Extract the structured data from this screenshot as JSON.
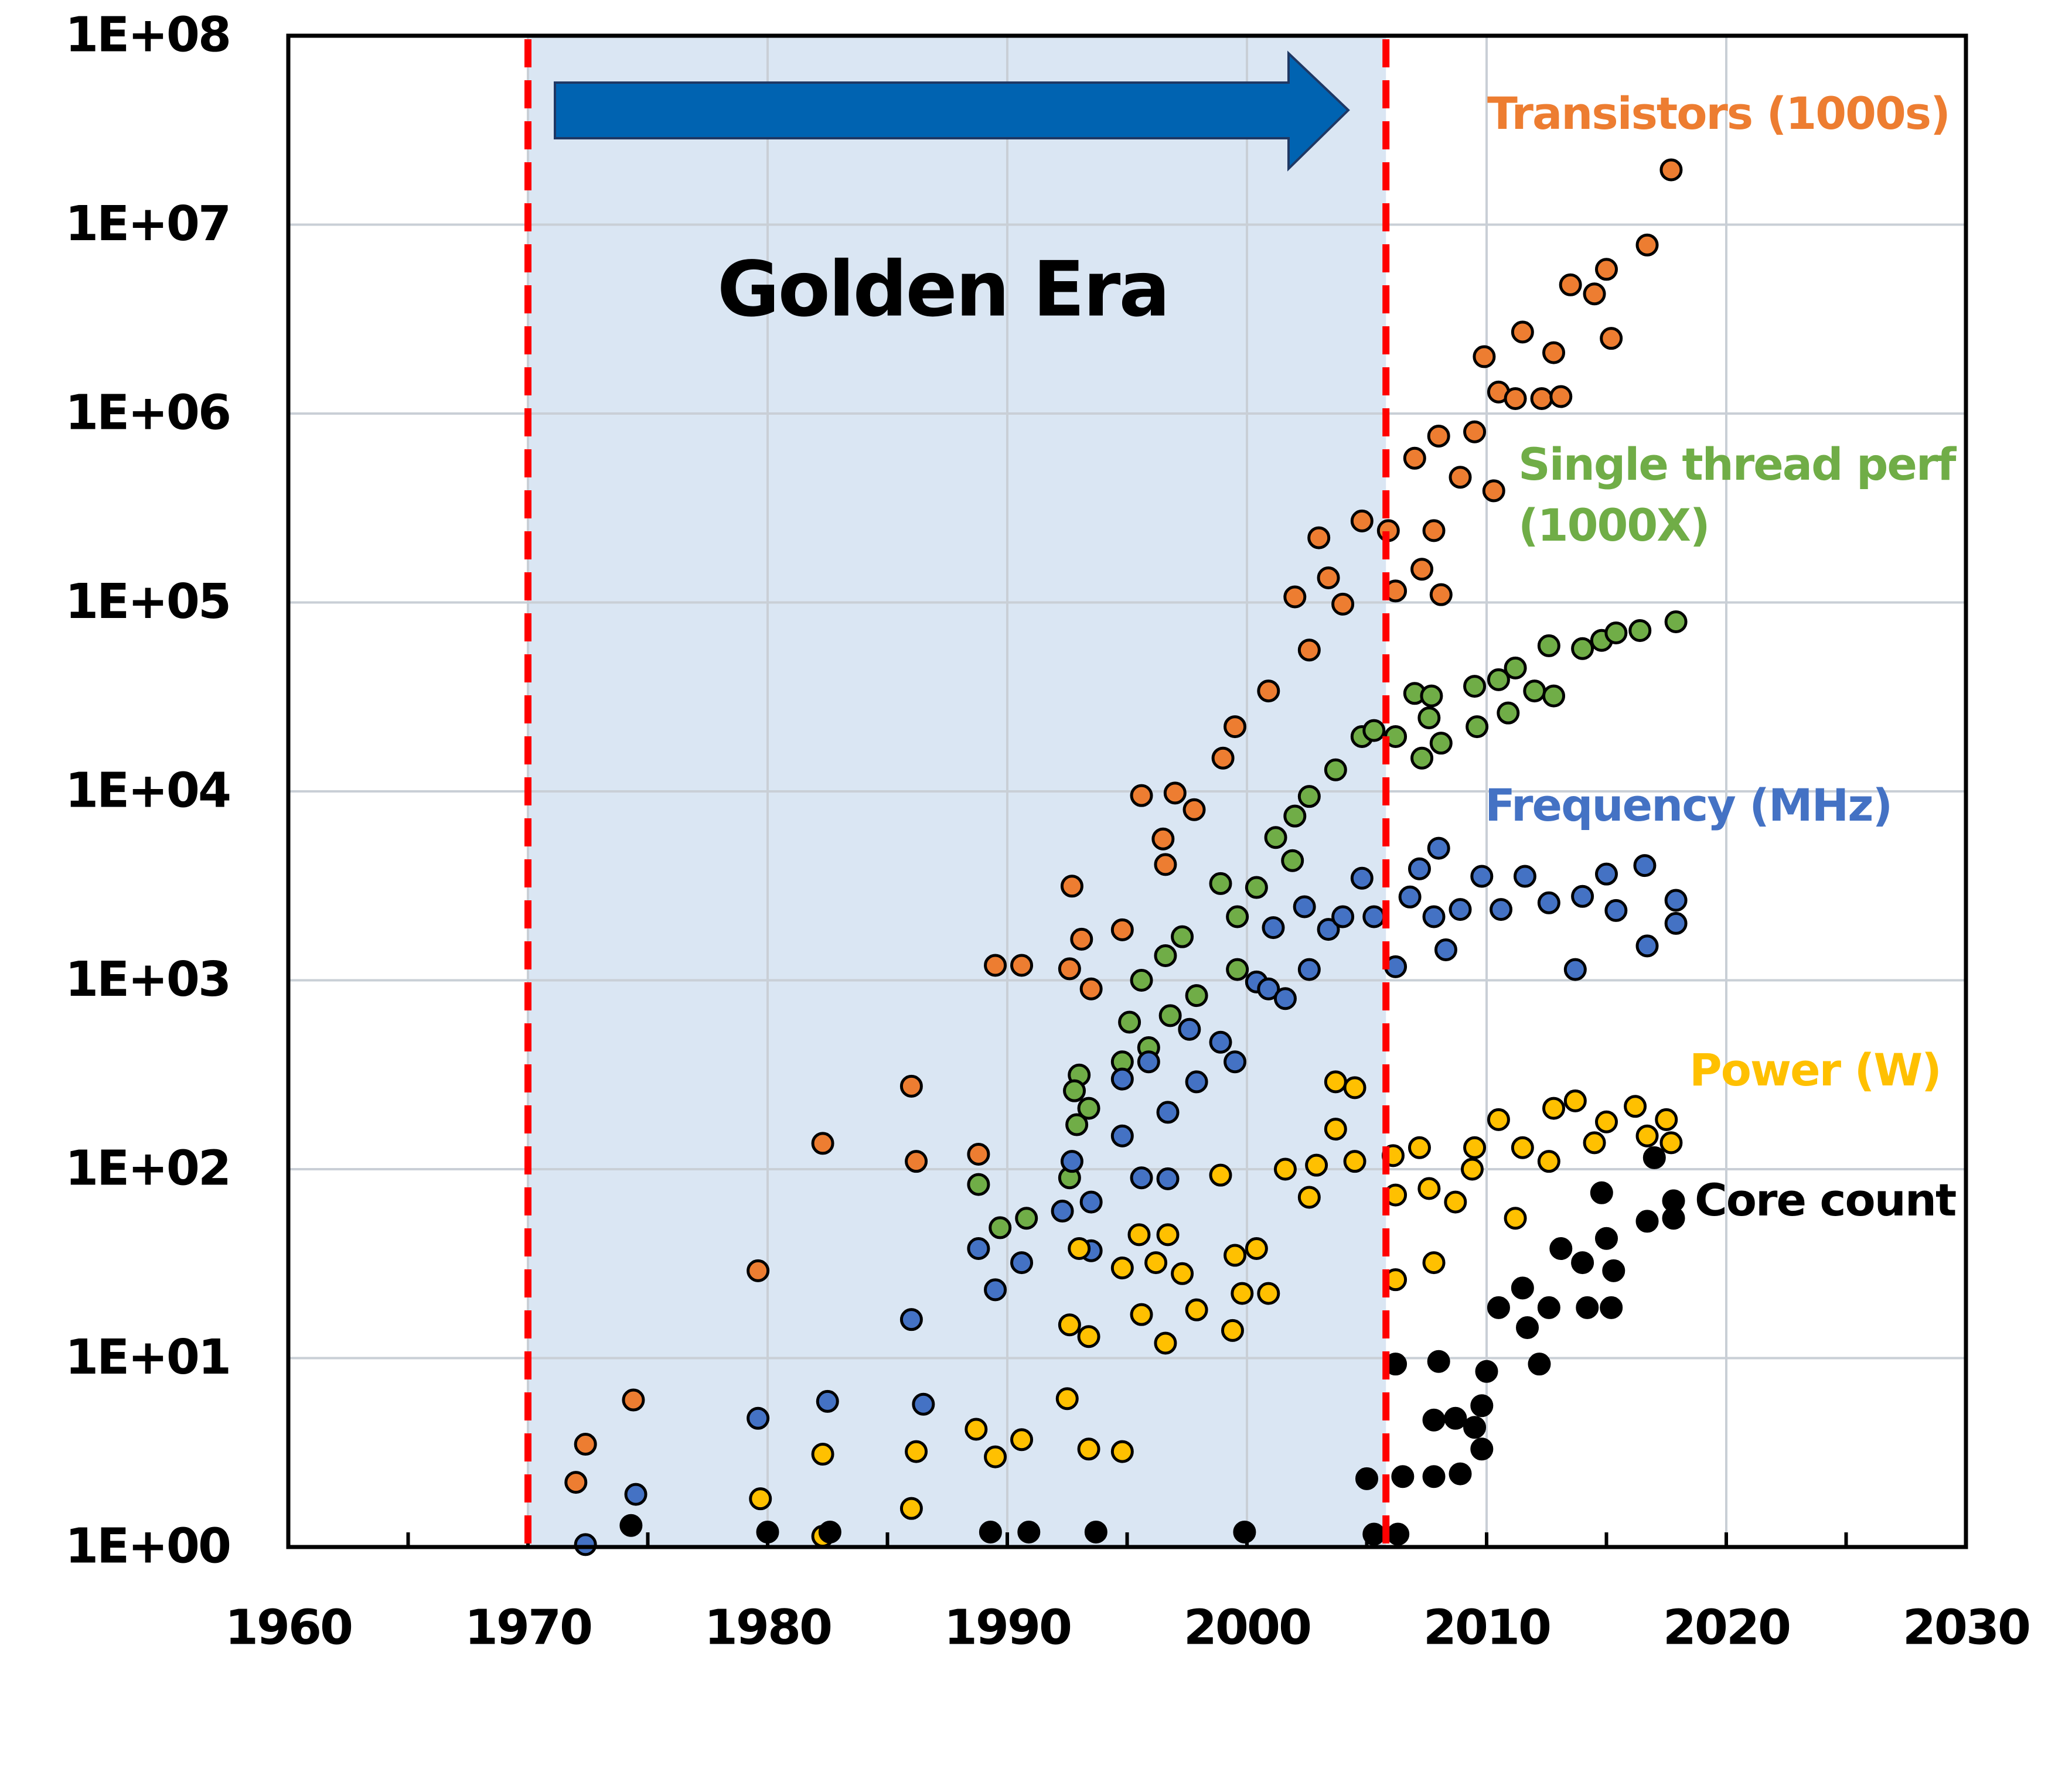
{
  "chart_data": {
    "type": "scatter",
    "annotation": "Golden Era",
    "highlight_xlim": [
      1970,
      2005.8
    ],
    "log_y": true,
    "grid": true,
    "xlim": [
      1960,
      2030
    ],
    "xticks": [
      1960,
      1970,
      1980,
      1990,
      2000,
      2010,
      2020,
      2030
    ],
    "xminorticks": [
      1965,
      1975,
      1985,
      1995,
      2005,
      2015,
      2025
    ],
    "ylim": [
      1,
      100000000
    ],
    "yticks": [
      {
        "value": 1,
        "label": "1E+00"
      },
      {
        "value": 10,
        "label": "1E+01"
      },
      {
        "value": 100,
        "label": "1E+02"
      },
      {
        "value": 1000,
        "label": "1E+03"
      },
      {
        "value": 10000,
        "label": "1E+04"
      },
      {
        "value": 100000,
        "label": "1E+05"
      },
      {
        "value": 1000000,
        "label": "1E+06"
      },
      {
        "value": 10000000,
        "label": "1E+07"
      },
      {
        "value": 100000000,
        "label": "1E+08"
      }
    ],
    "series": [
      {
        "name": "Transistors (1000s)",
        "color": "#ED7D31",
        "x": [
          1972,
          1972.4,
          1974.4,
          1979.6,
          1982.3,
          1986,
          1986.2,
          1988.8,
          1989.5,
          1990.6,
          1992.6,
          1993.1,
          1993.5,
          1992.7,
          1994.8,
          1995.6,
          1997,
          1997.8,
          1996.6,
          1996.5,
          1999,
          1999.5,
          2000.9,
          2002,
          2003,
          2003.4,
          2002.6,
          2004,
          2004.8,
          2005.9,
          2006.2,
          2007,
          2008,
          2007.3,
          2008.1,
          2007.8,
          2009.5,
          2008.9,
          2010.3,
          2009.9,
          2010.5,
          2011.2,
          2012.3,
          2013.1,
          2011.5,
          2012.8,
          2013.5,
          2014.5,
          2015,
          2015.2,
          2016.7,
          2017.7
        ],
        "values": [
          2.2,
          3.5,
          6,
          29,
          137,
          275,
          110,
          120,
          1200,
          1200,
          1150,
          1650,
          900,
          3150,
          1850,
          9500,
          9800,
          8000,
          4100,
          5600,
          15000,
          22000,
          34000,
          107000,
          220000,
          135000,
          56000,
          98000,
          270000,
          240000,
          115000,
          580000,
          760000,
          150000,
          110000,
          240000,
          800000,
          460000,
          390000,
          2000000,
          1300000,
          1200000,
          1200000,
          1230000,
          2700000,
          2100000,
          4800000,
          4300000,
          5800000,
          2500000,
          7800000,
          19500000
        ]
      },
      {
        "name": "Single thread perf (1000X)",
        "color": "#70AD47",
        "x": [
          1988.8,
          1989.7,
          1990.8,
          1993,
          1992.8,
          1993.4,
          1992.9,
          1992.6,
          1994.8,
          1995.1,
          1995.9,
          1995.6,
          1996.6,
          1997.3,
          1997.9,
          1996.8,
          1998.9,
          1999.6,
          2000.4,
          1999.6,
          2001.2,
          2002,
          2002.6,
          2001.9,
          2003.7,
          2004.8,
          2005.3,
          2006.2,
          2007,
          2007.6,
          2007.3,
          2008.1,
          2007.7,
          2009.5,
          2009.6,
          2010.5,
          2010.9,
          2011.2,
          2012,
          2012.8,
          2012.6,
          2014,
          2014.8,
          2015.4,
          2016.4,
          2017.9
        ],
        "values": [
          83,
          49,
          55,
          315,
          260,
          210,
          172,
          90,
          370,
          600,
          440,
          1000,
          1350,
          1700,
          830,
          650,
          3250,
          2170,
          3100,
          1140,
          5700,
          7400,
          9400,
          4300,
          13000,
          19500,
          21000,
          19500,
          33000,
          24500,
          15000,
          18000,
          32000,
          36000,
          22000,
          39000,
          26000,
          45000,
          34000,
          32000,
          59000,
          57000,
          63000,
          69000,
          71000,
          79000
        ]
      },
      {
        "name": "Frequency (MHz)",
        "color": "#4472C4",
        "x": [
          1972.4,
          1974.5,
          1979.6,
          1982.5,
          1986,
          1986.5,
          1988.8,
          1989.5,
          1990.6,
          1992.3,
          1992.7,
          1993.5,
          1993.5,
          1994.8,
          1995.6,
          1996.7,
          1994.8,
          1995.9,
          1996.7,
          1997.9,
          1997.6,
          1998.9,
          1999.5,
          2000.4,
          2000.9,
          2001.1,
          2001.6,
          2002.6,
          2002.4,
          2003.4,
          2004,
          2004.8,
          2005.3,
          2006.2,
          2006.8,
          2007.2,
          2008,
          2008.3,
          2007.8,
          2008.9,
          2009.8,
          2010.6,
          2011.6,
          2012.6,
          2013.7,
          2014,
          2015,
          2015.4,
          2016.6,
          2016.7,
          2017.9,
          2017.9
        ],
        "values": [
          1.03,
          1.9,
          4.8,
          5.9,
          16,
          5.7,
          38,
          23,
          32,
          60,
          110,
          67,
          37,
          150,
          90,
          89,
          300,
          370,
          200,
          290,
          550,
          470,
          370,
          980,
          900,
          1900,
          800,
          1140,
          2450,
          1860,
          2170,
          3470,
          2170,
          1180,
          2760,
          3890,
          5000,
          1450,
          2170,
          2370,
          3550,
          2370,
          3550,
          2570,
          1140,
          2780,
          3650,
          2340,
          4050,
          1520,
          2650,
          2000
        ]
      },
      {
        "name": "Power (W)",
        "color": "#FFC000",
        "x": [
          1982.3,
          1979.7,
          1982.3,
          1986,
          1986.2,
          1988.7,
          1989.5,
          1990.6,
          1992.5,
          1993.4,
          1994.8,
          1992.6,
          1993.4,
          1993,
          1994.8,
          1995.5,
          1995.6,
          1996.2,
          1996.7,
          1997.3,
          1996.6,
          1997.9,
          1998.9,
          1999.5,
          1999.8,
          1999.4,
          2000.9,
          2000.4,
          2001.6,
          2002.6,
          2002.9,
          2003.7,
          2003.7,
          2004.5,
          2004.5,
          2006.1,
          2006.2,
          2006.2,
          2007.2,
          2007.6,
          2007.8,
          2008.7,
          2009.5,
          2009.4,
          2010.5,
          2011.2,
          2011.5,
          2012.6,
          2012.8,
          2013.7,
          2014.5,
          2015,
          2016.2,
          2016.7,
          2017.5,
          2017.7
        ],
        "values": [
          1.14,
          1.8,
          3.1,
          1.6,
          3.2,
          4.2,
          3,
          3.7,
          6.1,
          3.3,
          3.2,
          15,
          13,
          38,
          30,
          45,
          17,
          32,
          45,
          28,
          12,
          18,
          93,
          35,
          22,
          14,
          22,
          38,
          100,
          71,
          105,
          163,
          290,
          270,
          110,
          118,
          73,
          26,
          130,
          79,
          32,
          67,
          130,
          100,
          183,
          55,
          130,
          110,
          210,
          230,
          138,
          178,
          215,
          150,
          183,
          138
        ]
      },
      {
        "name": "Core count",
        "color": "#000000",
        "x": [
          1974.3,
          1980,
          1982.6,
          1989.3,
          1990.9,
          1993.7,
          1999.9,
          2005.3,
          2006.3,
          2005,
          2006.5,
          2007.8,
          2008.9,
          2006.2,
          2008,
          2007.8,
          2008.7,
          2009.5,
          2009.8,
          2009.8,
          2010,
          2010.5,
          2011.5,
          2011.7,
          2012.2,
          2012.6,
          2013.1,
          2014,
          2014.2,
          2014.8,
          2015,
          2015.2,
          2015.3,
          2016.7,
          2017,
          2017.8,
          2017.8
        ],
        "values": [
          1.3,
          1.2,
          1.2,
          1.2,
          1.2,
          1.2,
          1.2,
          1.17,
          1.17,
          2.3,
          2.36,
          2.36,
          2.44,
          9.3,
          9.6,
          4.7,
          4.8,
          4.3,
          3.3,
          5.6,
          8.5,
          18.5,
          23.5,
          14.5,
          9.3,
          18.5,
          38,
          32,
          18.5,
          75,
          43,
          18.5,
          29,
          53,
          115,
          55,
          68
        ]
      }
    ]
  }
}
